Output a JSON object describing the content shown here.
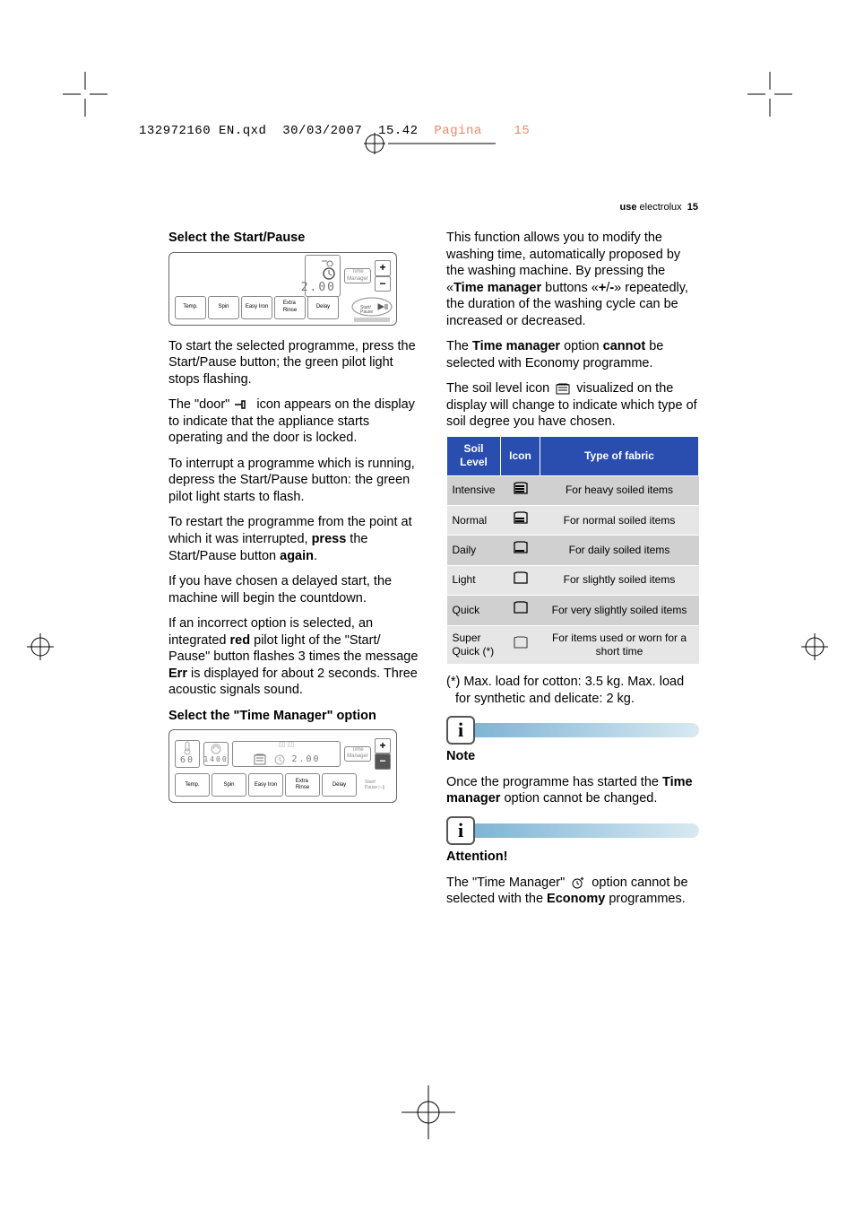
{
  "header": {
    "filename": "132972160 EN.qxd",
    "date": "30/03/2007",
    "time": "15.42",
    "pagina": "Pagina",
    "pagenum": "15"
  },
  "running_head": {
    "prefix": "use",
    "brand": "electrolux",
    "page": "15"
  },
  "left": {
    "h_start": "Select the Start/Pause",
    "panel1": {
      "tm_label": "Time\nManager",
      "display": "2.00",
      "btns": [
        "Temp.",
        "Spin",
        "Easy Iron",
        "Extra\nRinse",
        "Delay"
      ],
      "start": "Start/\nPause"
    },
    "p1a": "To start the selected programme, press the Start/Pause button; the green pilot light stops flashing.",
    "p2a": "The \"door\" ",
    "p2b": " icon appears on the display to indicate that the appliance starts operating and the door is locked.",
    "p3": "To interrupt a programme which is running, depress the Start/Pause button: the green pilot light starts to flash.",
    "p4a": "To restart the programme from the point at which it was interrupted, ",
    "p4b_press": "press",
    "p4c": " the Start/Pause button ",
    "p4d_again": "again",
    "p4e": ".",
    "p5": "If you have chosen a delayed start, the machine will begin the countdown.",
    "p6a": "If an incorrect option is selected, an integrated ",
    "p6b_red": "red",
    "p6c": " pilot light of the \"Start/ Pause\" button flashes 3 times the message ",
    "p6d_err": "Err",
    "p6e": " is displayed for about 2 seconds. Three acoustic signals sound.",
    "h_tm": "Select the \"Time Manager\" option",
    "panel2": {
      "temp": "60",
      "spin": "1400",
      "display": "2.00",
      "tm_label": "Time\nManager",
      "btns": [
        "Temp.",
        "Spin",
        "Easy Iron",
        "Extra\nRinse",
        "Delay"
      ],
      "start": "Start/\nPause"
    }
  },
  "right": {
    "p1a": "This function allows you to modify the washing time, automatically proposed by the washing machine. By pressing the «",
    "p1b_tm": "Time manager",
    "p1c": " buttons «",
    "p1d_plus": "+",
    "p1e": "/",
    "p1f_minus": "-",
    "p1g": "» repeatedly, the duration of the washing cycle can be increased or decreased.",
    "p2a": "The ",
    "p2b_tm": "Time manager",
    "p2c": " option ",
    "p2d_cannot": "cannot",
    "p2e": " be selected with Economy programme.",
    "p3a": "The soil level icon ",
    "p3b": " visualized on the display will change to indicate which type of soil degree you have chosen.",
    "table": {
      "headers": [
        "Soil Level",
        "Icon",
        "Type of fabric"
      ],
      "rows": [
        {
          "level": "Intensive",
          "fill": 3,
          "desc": "For heavy soiled items"
        },
        {
          "level": "Normal",
          "fill": 2,
          "desc": "For normal soiled items"
        },
        {
          "level": "Daily",
          "fill": 1,
          "desc": "For daily soiled items"
        },
        {
          "level": "Light",
          "fill": 0,
          "desc": "For slightly soiled items"
        },
        {
          "level": "Quick",
          "fill": -1,
          "desc": "For very slightly soiled items"
        },
        {
          "level": "Super Quick (*)",
          "fill": -2,
          "desc": "For items used or worn for a short time"
        }
      ]
    },
    "footnote": "(*) Max. load for cotton: 3.5 kg. Max. load for synthetic and delicate: 2 kg.",
    "note_h": "Note",
    "note_a": "Once the programme has started the ",
    "note_b": "Time manager",
    "note_c": " option cannot be changed.",
    "attn_h": "Attention!",
    "attn_a": "The \"Time Manager\" ",
    "attn_b": " option cannot be selected with the ",
    "attn_c": "Economy",
    "attn_d": " programmes."
  },
  "colors": {
    "th_bg": "#2a4db0",
    "info_grad_a": "#7cb3d4",
    "info_grad_b": "#d8e9f2"
  }
}
